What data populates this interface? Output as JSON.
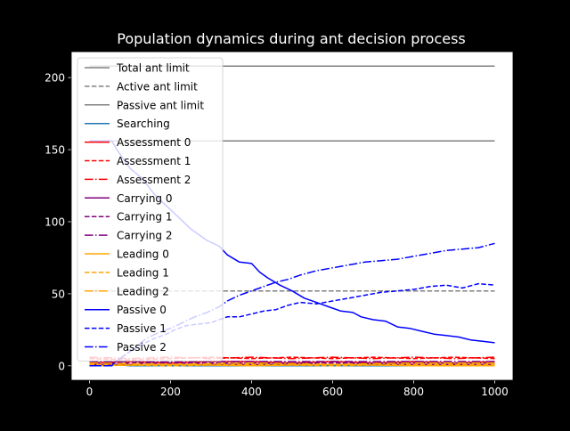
{
  "chart_data": {
    "type": "line",
    "title": "Population dynamics during ant decision process",
    "xlabel": "",
    "ylabel": "",
    "xlim": [
      -45,
      1045
    ],
    "ylim": [
      -10,
      218
    ],
    "xticks": [
      0,
      200,
      400,
      600,
      800,
      1000
    ],
    "yticks": [
      0,
      50,
      100,
      150,
      200
    ],
    "grid": false,
    "legend": "upper left",
    "series": [
      {
        "name": "Total ant limit",
        "color": "#808080",
        "dash": "solid",
        "x": [
          0,
          1000
        ],
        "y": [
          208,
          208
        ]
      },
      {
        "name": "Active ant limit",
        "color": "#808080",
        "dash": "dashed",
        "x": [
          0,
          1000
        ],
        "y": [
          52,
          52
        ]
      },
      {
        "name": "Passive ant limit",
        "color": "#808080",
        "dash": "solid",
        "x": [
          0,
          1000
        ],
        "y": [
          156,
          156
        ]
      },
      {
        "name": "Searching",
        "color": "#1f77b4",
        "dash": "solid",
        "x": [
          0,
          20,
          60,
          100,
          1000
        ],
        "y": [
          0,
          1,
          1,
          0,
          0
        ]
      },
      {
        "name": "Assessment 0",
        "color": "#ff0000",
        "dash": "solid",
        "x": [
          0,
          100,
          200,
          300,
          400,
          500,
          600,
          700,
          800,
          900,
          1000
        ],
        "y": [
          2,
          3,
          2,
          3,
          3,
          2,
          3,
          2,
          3,
          2,
          3
        ]
      },
      {
        "name": "Assessment 1",
        "color": "#ff0000",
        "dash": "dashed",
        "x": [
          0,
          100,
          200,
          300,
          400,
          500,
          600,
          700,
          800,
          900,
          1000
        ],
        "y": [
          5,
          4,
          5,
          6,
          5,
          6,
          5,
          6,
          5,
          6,
          5
        ]
      },
      {
        "name": "Assessment 2",
        "color": "#ff0000",
        "dash": "dashdot",
        "x": [
          0,
          100,
          200,
          300,
          400,
          500,
          600,
          700,
          800,
          900,
          1000
        ],
        "y": [
          6,
          5,
          6,
          5,
          6,
          5,
          6,
          5,
          6,
          5,
          6
        ]
      },
      {
        "name": "Carrying 0",
        "color": "#800080",
        "dash": "solid",
        "x": [
          0,
          1000
        ],
        "y": [
          1,
          1
        ]
      },
      {
        "name": "Carrying 1",
        "color": "#800080",
        "dash": "dashed",
        "x": [
          0,
          1000
        ],
        "y": [
          2,
          2
        ]
      },
      {
        "name": "Carrying 2",
        "color": "#800080",
        "dash": "dashdot",
        "x": [
          0,
          1000
        ],
        "y": [
          3,
          3
        ]
      },
      {
        "name": "Leading 0",
        "color": "#ffa500",
        "dash": "solid",
        "x": [
          0,
          200,
          400,
          600,
          800,
          1000
        ],
        "y": [
          0,
          1,
          0,
          1,
          0,
          0
        ]
      },
      {
        "name": "Leading 1",
        "color": "#ffa500",
        "dash": "dashed",
        "x": [
          0,
          200,
          400,
          600,
          800,
          1000
        ],
        "y": [
          1,
          0,
          1,
          0,
          1,
          1
        ]
      },
      {
        "name": "Leading 2",
        "color": "#ffa500",
        "dash": "dashdot",
        "x": [
          0,
          200,
          400,
          600,
          800,
          1000
        ],
        "y": [
          2,
          1,
          2,
          1,
          2,
          2
        ]
      },
      {
        "name": "Passive 0",
        "color": "#0000ff",
        "dash": "solid",
        "x": [
          0,
          55,
          70,
          100,
          130,
          160,
          190,
          220,
          250,
          290,
          320,
          340,
          370,
          400,
          420,
          440,
          470,
          500,
          530,
          560,
          590,
          620,
          650,
          670,
          700,
          730,
          760,
          790,
          820,
          850,
          880,
          910,
          940,
          970,
          1000
        ],
        "y": [
          156,
          156,
          149,
          137,
          130,
          119,
          111,
          103,
          95,
          87,
          83,
          77,
          72,
          71,
          65,
          61,
          56,
          52,
          47,
          44,
          41,
          38,
          37,
          34,
          32,
          31,
          27,
          26,
          24,
          22,
          21,
          20,
          18,
          17,
          16
        ]
      },
      {
        "name": "Passive 1",
        "color": "#0000ff",
        "dash": "dashed",
        "x": [
          0,
          55,
          60,
          80,
          100,
          130,
          160,
          190,
          210,
          240,
          270,
          300,
          320,
          340,
          370,
          400,
          430,
          460,
          490,
          520,
          560,
          600,
          640,
          680,
          720,
          760,
          800,
          840,
          880,
          920,
          960,
          1000
        ],
        "y": [
          0,
          0,
          2,
          6,
          10,
          15,
          19,
          22,
          25,
          28,
          29,
          30,
          32,
          34,
          34,
          36,
          38,
          39,
          42,
          44,
          43,
          45,
          47,
          49,
          51,
          52,
          53,
          55,
          56,
          54,
          57,
          56
        ]
      },
      {
        "name": "Passive 2",
        "color": "#0000ff",
        "dash": "dashdot",
        "x": [
          0,
          55,
          65,
          90,
          110,
          140,
          170,
          200,
          230,
          260,
          290,
          320,
          340,
          370,
          400,
          430,
          460,
          490,
          520,
          560,
          600,
          640,
          680,
          720,
          760,
          800,
          840,
          880,
          920,
          960,
          1000
        ],
        "y": [
          0,
          0,
          3,
          8,
          12,
          19,
          23,
          26,
          30,
          34,
          37,
          41,
          45,
          49,
          52,
          55,
          58,
          60,
          63,
          66,
          68,
          70,
          72,
          73,
          74,
          76,
          78,
          80,
          81,
          82,
          85
        ]
      }
    ]
  }
}
